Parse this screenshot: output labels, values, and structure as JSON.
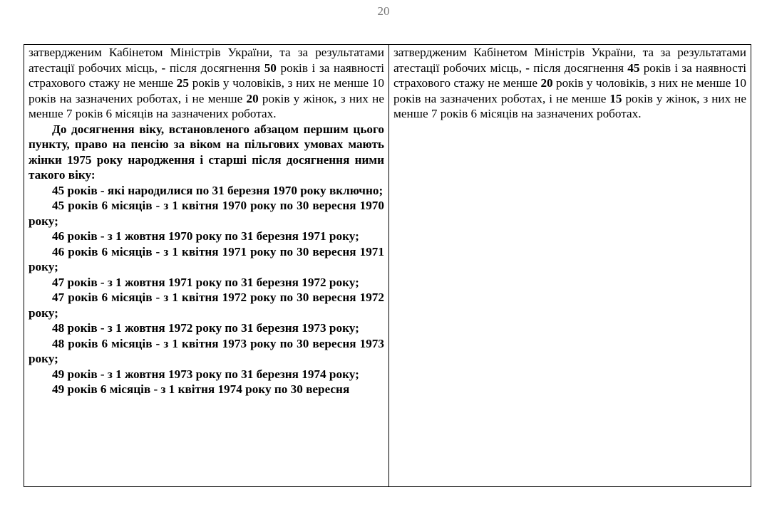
{
  "page_number": "20",
  "left_column": [
    {
      "indent": false,
      "bold": false,
      "segments": [
        {
          "t": "затвердженим Кабінетом Міністрів України, та за результатами атестації робочих місць, "
        },
        {
          "t": "-",
          "b": true
        },
        {
          "t": " після досягнення "
        },
        {
          "t": "50",
          "b": true
        },
        {
          "t": " років і за наявності страхового стажу не менше "
        },
        {
          "t": "25",
          "b": true
        },
        {
          "t": " років у чоловіків, з них не менше 10 років на зазначених роботах, і не менше "
        },
        {
          "t": "20",
          "b": true
        },
        {
          "t": " років у жінок, з них не менше 7 років 6 місяців на зазначених роботах."
        }
      ]
    },
    {
      "indent": true,
      "bold": true,
      "segments": [
        {
          "t": "До досягнення віку, встановленого абзацом першим цього пункту, право на пенсію за віком на пільгових умовах мають жінки 1975 року народження і старші після досягнення ними такого віку:"
        }
      ]
    },
    {
      "indent": true,
      "bold": true,
      "segments": [
        {
          "t": "45 років - які народилися по 31 березня 1970 року включно;"
        }
      ]
    },
    {
      "indent": true,
      "bold": true,
      "segments": [
        {
          "t": "45 років 6 місяців - з 1 квітня 1970 року по 30 вересня 1970 року;"
        }
      ]
    },
    {
      "indent": true,
      "bold": true,
      "segments": [
        {
          "t": "46 років - з 1 жовтня 1970 року по 31 березня 1971 року;"
        }
      ]
    },
    {
      "indent": true,
      "bold": true,
      "segments": [
        {
          "t": "46 років 6 місяців - з 1 квітня 1971 року по 30 вересня 1971 року;"
        }
      ]
    },
    {
      "indent": true,
      "bold": true,
      "segments": [
        {
          "t": "47 років - з 1 жовтня 1971 року по 31 березня 1972 року;"
        }
      ]
    },
    {
      "indent": true,
      "bold": true,
      "segments": [
        {
          "t": "47 років 6 місяців - з 1 квітня 1972 року по 30 вересня 1972 року;"
        }
      ]
    },
    {
      "indent": true,
      "bold": true,
      "segments": [
        {
          "t": "48 років - з 1 жовтня 1972 року по 31 березня 1973 року;"
        }
      ]
    },
    {
      "indent": true,
      "bold": true,
      "segments": [
        {
          "t": "48 років 6 місяців - з 1 квітня 1973 року по 30 вересня 1973 року;"
        }
      ]
    },
    {
      "indent": true,
      "bold": true,
      "segments": [
        {
          "t": "49 років - з 1 жовтня 1973 року по 31 березня 1974 року;"
        }
      ]
    },
    {
      "indent": true,
      "bold": true,
      "segments": [
        {
          "t": "49 років 6 місяців - з 1 квітня 1974 року по 30 вересня"
        }
      ]
    }
  ],
  "right_column": [
    {
      "indent": false,
      "bold": false,
      "segments": [
        {
          "t": "затвердженим Кабінетом Міністрів України, та за результатами атестації робочих місць, "
        },
        {
          "t": "-",
          "b": true
        },
        {
          "t": " після досягнення "
        },
        {
          "t": "45",
          "b": true
        },
        {
          "t": " років і за наявності страхового стажу не менше "
        },
        {
          "t": "20",
          "b": true
        },
        {
          "t": " років у чоловіків, з них не менше 10 років на зазначених роботах, і не менше "
        },
        {
          "t": "15",
          "b": true
        },
        {
          "t": " років у жінок, з них не менше 7 років 6 місяців на зазначених роботах."
        }
      ]
    }
  ]
}
